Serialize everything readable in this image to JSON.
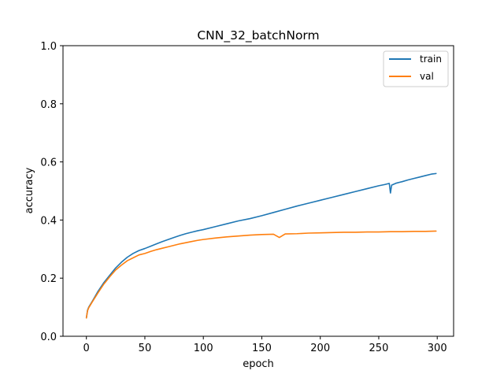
{
  "chart_data": {
    "type": "line",
    "title": "CNN_32_batchNorm",
    "xlabel": "epoch",
    "ylabel": "accuracy",
    "xlim": [
      -20,
      314
    ],
    "ylim": [
      0.0,
      1.0
    ],
    "xticks": [
      0,
      50,
      100,
      150,
      200,
      250,
      300
    ],
    "yticks": [
      0.0,
      0.2,
      0.4,
      0.6,
      0.8,
      1.0
    ],
    "xtick_labels": [
      "0",
      "50",
      "100",
      "150",
      "200",
      "250",
      "300"
    ],
    "ytick_labels": [
      "0.0",
      "0.2",
      "0.4",
      "0.6",
      "0.8",
      "1.0"
    ],
    "grid": false,
    "legend_position": "top-right",
    "series": [
      {
        "name": "train",
        "color": "#1f77b4",
        "x": [
          0,
          1,
          2,
          5,
          10,
          15,
          20,
          25,
          30,
          35,
          40,
          45,
          50,
          55,
          60,
          65,
          70,
          75,
          80,
          85,
          90,
          95,
          100,
          110,
          120,
          130,
          140,
          150,
          160,
          170,
          180,
          190,
          200,
          210,
          220,
          230,
          240,
          250,
          255,
          259,
          260,
          261,
          265,
          270,
          275,
          280,
          285,
          290,
          295,
          299
        ],
        "values": [
          0.063,
          0.09,
          0.1,
          0.12,
          0.155,
          0.185,
          0.21,
          0.235,
          0.255,
          0.272,
          0.285,
          0.295,
          0.302,
          0.31,
          0.318,
          0.326,
          0.333,
          0.34,
          0.347,
          0.353,
          0.358,
          0.363,
          0.367,
          0.377,
          0.387,
          0.397,
          0.405,
          0.415,
          0.426,
          0.437,
          0.448,
          0.458,
          0.468,
          0.478,
          0.488,
          0.498,
          0.508,
          0.518,
          0.522,
          0.526,
          0.493,
          0.52,
          0.527,
          0.532,
          0.538,
          0.543,
          0.548,
          0.553,
          0.558,
          0.56
        ]
      },
      {
        "name": "val",
        "color": "#ff7f0e",
        "x": [
          0,
          1,
          2,
          5,
          10,
          15,
          20,
          25,
          30,
          35,
          40,
          45,
          50,
          55,
          60,
          65,
          70,
          75,
          80,
          85,
          90,
          95,
          100,
          110,
          120,
          130,
          140,
          150,
          160,
          165,
          170,
          180,
          190,
          200,
          210,
          220,
          230,
          240,
          250,
          260,
          270,
          280,
          290,
          299
        ],
        "values": [
          0.063,
          0.088,
          0.098,
          0.118,
          0.15,
          0.18,
          0.205,
          0.228,
          0.245,
          0.26,
          0.27,
          0.28,
          0.285,
          0.292,
          0.298,
          0.303,
          0.308,
          0.313,
          0.318,
          0.322,
          0.326,
          0.33,
          0.333,
          0.338,
          0.342,
          0.345,
          0.348,
          0.35,
          0.351,
          0.34,
          0.352,
          0.353,
          0.355,
          0.356,
          0.357,
          0.358,
          0.358,
          0.359,
          0.359,
          0.36,
          0.36,
          0.361,
          0.361,
          0.362
        ]
      }
    ]
  }
}
